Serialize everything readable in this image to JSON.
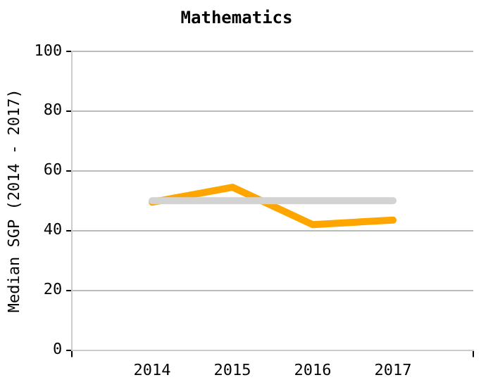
{
  "chart_data": {
    "type": "line",
    "title": "Mathematics",
    "ylabel": "Median SGP (2014 - 2017)",
    "x": [
      2014,
      2015,
      2016,
      2017
    ],
    "series": [
      {
        "color": "#d3d3d3",
        "values": [
          50,
          50,
          50,
          50
        ]
      },
      {
        "color": "#ffa500",
        "values": [
          49.5,
          54.5,
          42,
          43.5
        ]
      }
    ],
    "xlim": [
      2013,
      2018
    ],
    "xticks": [
      {
        "value": 2013,
        "label": null
      },
      2014,
      2015,
      2016,
      2017,
      {
        "value": 2018,
        "label": null
      }
    ],
    "ylim": [
      0,
      100
    ],
    "yticks": [
      0,
      20,
      40,
      60,
      80,
      100
    ],
    "grid": "y",
    "legend": false,
    "marker": "none",
    "line_style": "solid"
  }
}
